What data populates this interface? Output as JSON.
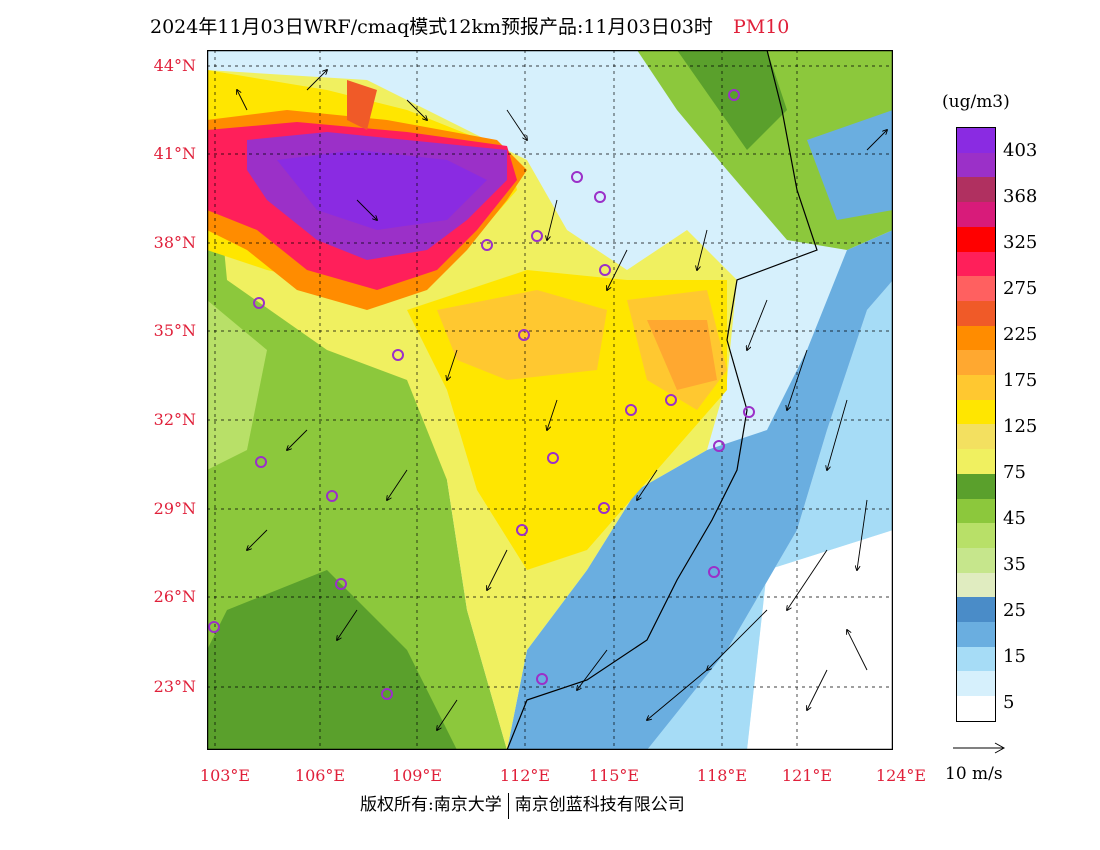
{
  "title": "2024年11月03日WRF/cmaq模式12km预报产品:11月03日03时",
  "variable": "PM10",
  "unit": "(ug/m3)",
  "lat_labels": [
    "44°N",
    "41°N",
    "38°N",
    "35°N",
    "32°N",
    "29°N",
    "26°N",
    "23°N"
  ],
  "lon_labels": [
    "103°E",
    "106°E",
    "109°E",
    "112°E",
    "115°E",
    "118°E",
    "121°E",
    "124°E"
  ],
  "legend": {
    "colors": [
      "#8a2be2",
      "#9b30c8",
      "#b03060",
      "#d81b7a",
      "#ff0000",
      "#ff1f5a",
      "#ff6060",
      "#f05a28",
      "#ff8c00",
      "#ffa830",
      "#ffc830",
      "#ffe600",
      "#f3e060",
      "#f0f060",
      "#5aa02c",
      "#8cc83c",
      "#b8e068",
      "#c6e68c",
      "#e0ecc0",
      "#4a8cc8",
      "#6aaee0",
      "#a6dcf6",
      "#d6f0fc",
      "#ffffff"
    ],
    "labels": [
      "403",
      "368",
      "325",
      "275",
      "225",
      "175",
      "125",
      "75",
      "45",
      "35",
      "25",
      "15",
      "5"
    ]
  },
  "wind_reference": "10 m/s",
  "copyright": {
    "left": "版权所有:南京大学",
    "right": "南京创蓝科技有限公司"
  }
}
